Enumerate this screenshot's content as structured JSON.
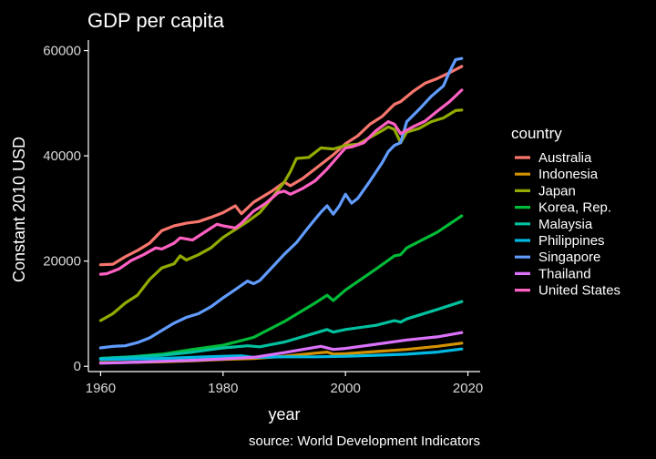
{
  "chart_data": {
    "type": "line",
    "title": "GDP per capita",
    "xlabel": "year",
    "ylabel": "Constant 2010 USD",
    "caption": "source: World Development Indicators",
    "legend_title": "country",
    "legend_position": "right",
    "grid": false,
    "xlim": [
      1958,
      2022
    ],
    "ylim": [
      -1000,
      62000
    ],
    "x_ticks": [
      1960,
      1980,
      2000,
      2020
    ],
    "y_ticks": [
      0,
      20000,
      40000,
      60000
    ],
    "series": [
      {
        "name": "Australia",
        "color": "#F8766D",
        "points": [
          [
            1960,
            19300
          ],
          [
            1962,
            19400
          ],
          [
            1964,
            20800
          ],
          [
            1966,
            22000
          ],
          [
            1968,
            23400
          ],
          [
            1970,
            25800
          ],
          [
            1972,
            26700
          ],
          [
            1974,
            27200
          ],
          [
            1976,
            27500
          ],
          [
            1978,
            28300
          ],
          [
            1980,
            29200
          ],
          [
            1982,
            30500
          ],
          [
            1983,
            29000
          ],
          [
            1985,
            31200
          ],
          [
            1988,
            33300
          ],
          [
            1990,
            35000
          ],
          [
            1991,
            34300
          ],
          [
            1993,
            35700
          ],
          [
            1995,
            37500
          ],
          [
            1998,
            40200
          ],
          [
            2000,
            42300
          ],
          [
            2002,
            43800
          ],
          [
            2004,
            46000
          ],
          [
            2006,
            47500
          ],
          [
            2008,
            49800
          ],
          [
            2009,
            50300
          ],
          [
            2011,
            52200
          ],
          [
            2013,
            53800
          ],
          [
            2015,
            54700
          ],
          [
            2017,
            55800
          ],
          [
            2019,
            57000
          ]
        ]
      },
      {
        "name": "Indonesia",
        "color": "#D39200",
        "points": [
          [
            1960,
            700
          ],
          [
            1965,
            750
          ],
          [
            1970,
            850
          ],
          [
            1975,
            1050
          ],
          [
            1980,
            1300
          ],
          [
            1985,
            1500
          ],
          [
            1990,
            1900
          ],
          [
            1995,
            2500
          ],
          [
            1997,
            2700
          ],
          [
            1998,
            2300
          ],
          [
            2000,
            2400
          ],
          [
            2005,
            2800
          ],
          [
            2010,
            3200
          ],
          [
            2015,
            3800
          ],
          [
            2019,
            4400
          ]
        ]
      },
      {
        "name": "Japan",
        "color": "#93AA00",
        "points": [
          [
            1960,
            8700
          ],
          [
            1962,
            10000
          ],
          [
            1964,
            12000
          ],
          [
            1966,
            13500
          ],
          [
            1968,
            16500
          ],
          [
            1970,
            18700
          ],
          [
            1972,
            19500
          ],
          [
            1973,
            21000
          ],
          [
            1974,
            20200
          ],
          [
            1976,
            21200
          ],
          [
            1978,
            22500
          ],
          [
            1980,
            24500
          ],
          [
            1982,
            26000
          ],
          [
            1984,
            27500
          ],
          [
            1986,
            29200
          ],
          [
            1988,
            32000
          ],
          [
            1990,
            35000
          ],
          [
            1991,
            37000
          ],
          [
            1992,
            39500
          ],
          [
            1994,
            39700
          ],
          [
            1996,
            41500
          ],
          [
            1998,
            41300
          ],
          [
            2000,
            42000
          ],
          [
            2002,
            42200
          ],
          [
            2004,
            43500
          ],
          [
            2006,
            44800
          ],
          [
            2007,
            45500
          ],
          [
            2008,
            45000
          ],
          [
            2009,
            42500
          ],
          [
            2010,
            44500
          ],
          [
            2012,
            45200
          ],
          [
            2014,
            46500
          ],
          [
            2016,
            47200
          ],
          [
            2018,
            48600
          ],
          [
            2019,
            48700
          ]
        ]
      },
      {
        "name": "Korea, Rep.",
        "color": "#00BA38",
        "points": [
          [
            1960,
            1500
          ],
          [
            1965,
            1800
          ],
          [
            1970,
            2300
          ],
          [
            1975,
            3200
          ],
          [
            1980,
            4000
          ],
          [
            1985,
            5500
          ],
          [
            1990,
            8500
          ],
          [
            1995,
            12000
          ],
          [
            1997,
            13500
          ],
          [
            1998,
            12500
          ],
          [
            2000,
            14500
          ],
          [
            2005,
            18500
          ],
          [
            2008,
            21000
          ],
          [
            2009,
            21200
          ],
          [
            2010,
            22500
          ],
          [
            2015,
            25500
          ],
          [
            2019,
            28600
          ]
        ]
      },
      {
        "name": "Malaysia",
        "color": "#00C19F",
        "points": [
          [
            1960,
            1500
          ],
          [
            1965,
            1800
          ],
          [
            1970,
            2100
          ],
          [
            1975,
            2700
          ],
          [
            1980,
            3500
          ],
          [
            1984,
            3900
          ],
          [
            1986,
            3700
          ],
          [
            1990,
            4600
          ],
          [
            1995,
            6300
          ],
          [
            1997,
            7000
          ],
          [
            1998,
            6500
          ],
          [
            2000,
            7000
          ],
          [
            2005,
            7800
          ],
          [
            2008,
            8700
          ],
          [
            2009,
            8400
          ],
          [
            2010,
            9000
          ],
          [
            2015,
            10800
          ],
          [
            2019,
            12300
          ]
        ]
      },
      {
        "name": "Philippines",
        "color": "#00B9E3",
        "points": [
          [
            1960,
            1300
          ],
          [
            1965,
            1400
          ],
          [
            1970,
            1500
          ],
          [
            1975,
            1700
          ],
          [
            1980,
            1900
          ],
          [
            1983,
            2000
          ],
          [
            1985,
            1700
          ],
          [
            1990,
            1800
          ],
          [
            1995,
            1800
          ],
          [
            2000,
            1900
          ],
          [
            2005,
            2100
          ],
          [
            2010,
            2300
          ],
          [
            2015,
            2700
          ],
          [
            2019,
            3300
          ]
        ]
      },
      {
        "name": "Singapore",
        "color": "#619CFF",
        "points": [
          [
            1960,
            3500
          ],
          [
            1962,
            3800
          ],
          [
            1964,
            3900
          ],
          [
            1966,
            4500
          ],
          [
            1968,
            5400
          ],
          [
            1970,
            6800
          ],
          [
            1972,
            8200
          ],
          [
            1974,
            9300
          ],
          [
            1976,
            10000
          ],
          [
            1978,
            11300
          ],
          [
            1980,
            13000
          ],
          [
            1982,
            14600
          ],
          [
            1984,
            16200
          ],
          [
            1985,
            15700
          ],
          [
            1986,
            16300
          ],
          [
            1988,
            18800
          ],
          [
            1990,
            21300
          ],
          [
            1992,
            23500
          ],
          [
            1994,
            26500
          ],
          [
            1996,
            29300
          ],
          [
            1997,
            30500
          ],
          [
            1998,
            28900
          ],
          [
            1999,
            30500
          ],
          [
            2000,
            32700
          ],
          [
            2001,
            31000
          ],
          [
            2002,
            31900
          ],
          [
            2004,
            35200
          ],
          [
            2006,
            38700
          ],
          [
            2007,
            40800
          ],
          [
            2008,
            42000
          ],
          [
            2009,
            42500
          ],
          [
            2010,
            46500
          ],
          [
            2012,
            48800
          ],
          [
            2014,
            51300
          ],
          [
            2016,
            53300
          ],
          [
            2017,
            56000
          ],
          [
            2018,
            58300
          ],
          [
            2019,
            58500
          ]
        ]
      },
      {
        "name": "Thailand",
        "color": "#DB72FB",
        "points": [
          [
            1960,
            600
          ],
          [
            1965,
            750
          ],
          [
            1970,
            950
          ],
          [
            1975,
            1150
          ],
          [
            1980,
            1400
          ],
          [
            1985,
            1700
          ],
          [
            1990,
            2600
          ],
          [
            1995,
            3600
          ],
          [
            1996,
            3800
          ],
          [
            1998,
            3200
          ],
          [
            2000,
            3400
          ],
          [
            2005,
            4200
          ],
          [
            2010,
            5000
          ],
          [
            2015,
            5600
          ],
          [
            2019,
            6400
          ]
        ]
      },
      {
        "name": "United States",
        "color": "#FF61C3",
        "points": [
          [
            1960,
            17500
          ],
          [
            1961,
            17600
          ],
          [
            1963,
            18500
          ],
          [
            1965,
            20100
          ],
          [
            1967,
            21200
          ],
          [
            1969,
            22500
          ],
          [
            1970,
            22300
          ],
          [
            1972,
            23400
          ],
          [
            1973,
            24400
          ],
          [
            1975,
            24000
          ],
          [
            1977,
            25500
          ],
          [
            1979,
            27000
          ],
          [
            1980,
            26700
          ],
          [
            1982,
            26300
          ],
          [
            1983,
            27200
          ],
          [
            1985,
            29500
          ],
          [
            1987,
            31000
          ],
          [
            1989,
            33000
          ],
          [
            1990,
            33300
          ],
          [
            1991,
            32700
          ],
          [
            1993,
            33800
          ],
          [
            1995,
            35200
          ],
          [
            1997,
            37500
          ],
          [
            1999,
            40200
          ],
          [
            2000,
            41500
          ],
          [
            2001,
            41700
          ],
          [
            2003,
            42500
          ],
          [
            2005,
            44800
          ],
          [
            2007,
            46500
          ],
          [
            2008,
            46000
          ],
          [
            2009,
            44200
          ],
          [
            2011,
            45500
          ],
          [
            2013,
            46600
          ],
          [
            2015,
            48500
          ],
          [
            2017,
            50300
          ],
          [
            2019,
            52500
          ]
        ]
      }
    ]
  }
}
